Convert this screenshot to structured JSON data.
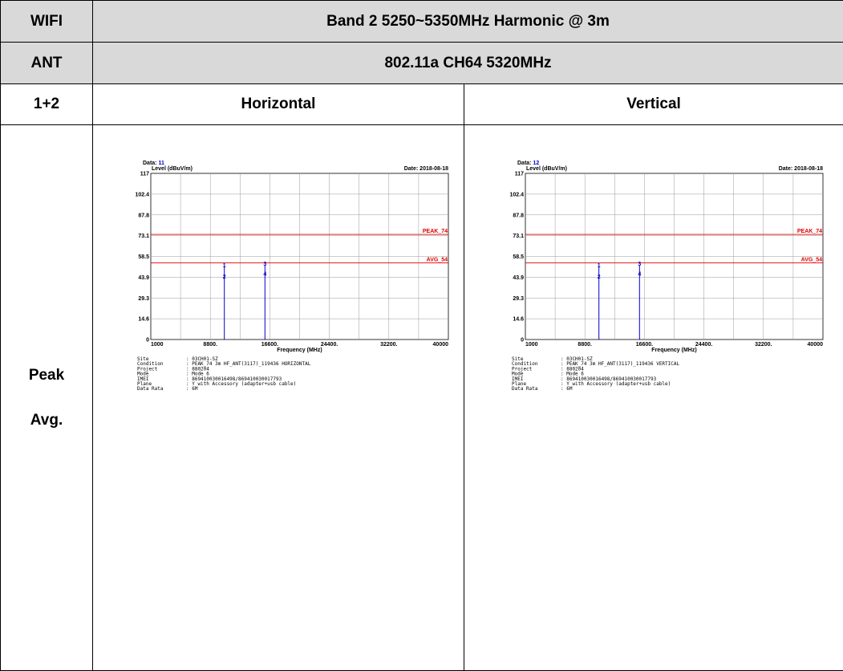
{
  "table": {
    "row1": {
      "label": "WIFI",
      "value": "Band 2 5250~5350MHz Harmonic @ 3m"
    },
    "row2": {
      "label": "ANT",
      "value": "802.11a CH64 5320MHz"
    },
    "row3": {
      "label": "1+2",
      "col_a": "Horizontal",
      "col_b": "Vertical"
    },
    "row4": {
      "label_line1": "Peak",
      "label_line2": "Avg."
    }
  },
  "plots": [
    {
      "data_label": "Data:",
      "data_no": "11",
      "date": "Date: 2018-08-18",
      "ylabel": "Level (dBuV/m)",
      "xlabel": "Frequency (MHz)",
      "peak_label": "PEAK_74",
      "avg_label": "AVG_54",
      "info": [
        {
          "key": "Site",
          "value": ": 03CH01-SZ"
        },
        {
          "key": "Condition",
          "value": ": PEAK_74 3m HF_ANT(3117)_119436 HORIZONTAL"
        },
        {
          "key": "Project",
          "value": ": 880204"
        },
        {
          "key": "Mode",
          "value": ": Mode 6"
        },
        {
          "key": "IMEI",
          "value": ": 869410030016498/869410030017793"
        },
        {
          "key": "Plane",
          "value": ": Y with Accessory (adapter+usb cable)"
        },
        {
          "key": "Data Rata",
          "value": ": 6M"
        }
      ]
    },
    {
      "data_label": "Data:",
      "data_no": "12",
      "date": "Date: 2018-08-18",
      "ylabel": "Level (dBuV/m)",
      "xlabel": "Frequency (MHz)",
      "peak_label": "PEAK_74",
      "avg_label": "AVG_54",
      "info": [
        {
          "key": "Site",
          "value": ": 03CH01-SZ"
        },
        {
          "key": "Condition",
          "value": ": PEAK_74 3m HF_ANT(3117)_119436 VERTICAL"
        },
        {
          "key": "Project",
          "value": ": 880204"
        },
        {
          "key": "Mode",
          "value": ": Mode 6"
        },
        {
          "key": "IMEI",
          "value": ": 869410030016498/869410030017793"
        },
        {
          "key": "Plane",
          "value": ": Y with Accessory (adapter+usb cable)"
        },
        {
          "key": "Data Rata",
          "value": ": 6M"
        }
      ]
    }
  ],
  "chart_data": [
    {
      "type": "line",
      "title": "",
      "xlabel": "Frequency (MHz)",
      "ylabel": "Level (dBuV/m)",
      "xlim": [
        1000,
        40000
      ],
      "ylim": [
        0,
        117
      ],
      "x_ticks": [
        "1000",
        "8800.",
        "16600.",
        "24400.",
        "32200.",
        "40000"
      ],
      "y_ticks": [
        "0",
        "14.6",
        "29.3",
        "43.9",
        "58.5",
        "73.1",
        "87.8",
        "102.4",
        "117"
      ],
      "grid": true,
      "limit_lines": [
        {
          "name": "PEAK_74",
          "value": 74,
          "color": "#e00000"
        },
        {
          "name": "AVG_54",
          "value": 54,
          "color": "#e00000"
        }
      ],
      "markers": [
        {
          "label": "1",
          "x": 10640,
          "y": 51
        },
        {
          "label": "2",
          "x": 10640,
          "y": 43
        },
        {
          "label": "3",
          "x": 15960,
          "y": 52
        },
        {
          "label": "4",
          "x": 15960,
          "y": 45
        }
      ]
    },
    {
      "type": "line",
      "title": "",
      "xlabel": "Frequency (MHz)",
      "ylabel": "Level (dBuV/m)",
      "xlim": [
        1000,
        40000
      ],
      "ylim": [
        0,
        117
      ],
      "x_ticks": [
        "1000",
        "8800.",
        "16600.",
        "24400.",
        "32200.",
        "40000"
      ],
      "y_ticks": [
        "0",
        "14.6",
        "29.3",
        "43.9",
        "58.5",
        "73.1",
        "87.8",
        "102.4",
        "117"
      ],
      "grid": true,
      "limit_lines": [
        {
          "name": "PEAK_74",
          "value": 74,
          "color": "#e00000"
        },
        {
          "name": "AVG_54",
          "value": 54,
          "color": "#e00000"
        }
      ],
      "markers": [
        {
          "label": "1",
          "x": 10640,
          "y": 51
        },
        {
          "label": "2",
          "x": 10640,
          "y": 43
        },
        {
          "label": "3",
          "x": 15960,
          "y": 52
        },
        {
          "label": "4",
          "x": 15960,
          "y": 45
        }
      ]
    }
  ]
}
